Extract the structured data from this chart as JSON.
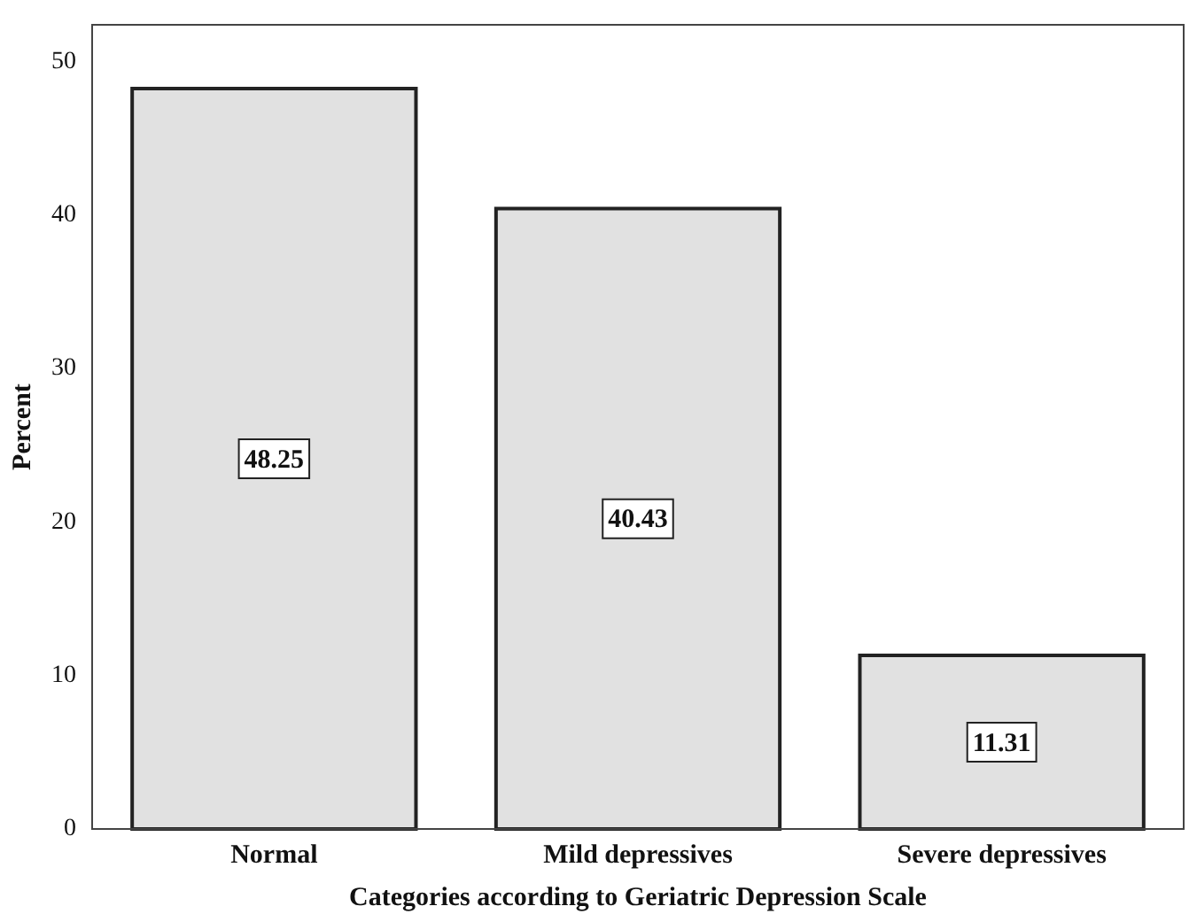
{
  "chart_data": {
    "type": "bar",
    "xlabel": "Categories according to Geriatric Depression Scale",
    "ylabel": "Percent",
    "categories": [
      "Normal",
      "Mild depressives",
      "Severe depressives"
    ],
    "values": [
      48.25,
      40.43,
      11.31
    ],
    "color": "#e1e1e1",
    "ylim": [
      0,
      52.4
    ],
    "yticks": [
      0,
      10,
      20,
      30,
      40,
      50
    ],
    "grid": false,
    "legend": false,
    "data_labels": true
  }
}
